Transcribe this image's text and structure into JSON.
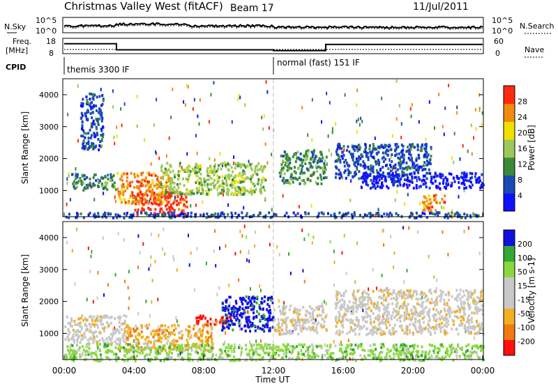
{
  "header": {
    "station": "Christmas Valley West (fitACF)",
    "beam": "Beam 17",
    "date": "11/Jul/2011"
  },
  "top_strip": {
    "nsky_label": "N.Sky",
    "nsky_ticks": [
      "10^5",
      "10^0"
    ],
    "nsearch_label": "N.Search",
    "freq_label_line1": "Freq.",
    "freq_label_line2": "[MHz]",
    "freq_ticks": [
      18,
      8
    ],
    "nave_ticks": [
      60,
      0
    ],
    "nave_label": "Nave",
    "cpid_label": "CPID",
    "cpid_segments": [
      {
        "name": "themis 3300 IF",
        "start_h": 0,
        "end_h": 12
      },
      {
        "name": "normal (fast) 151 IF",
        "start_h": 12,
        "end_h": 24
      }
    ],
    "freq_steps": [
      {
        "start_h": 0,
        "end_h": 3,
        "mhz": 14.5
      },
      {
        "start_h": 3,
        "end_h": 12,
        "mhz": 10.5
      },
      {
        "start_h": 12,
        "end_h": 15,
        "mhz": 10
      },
      {
        "start_h": 15,
        "end_h": 24,
        "mhz": 14
      }
    ]
  },
  "chart_data": {
    "type": "heatmap",
    "x_label": "Time UT",
    "x_ticks": [
      "00:00",
      "04:00",
      "08:00",
      "12:00",
      "16:00",
      "20:00",
      "00:00"
    ],
    "x_range_hours": [
      0,
      24
    ],
    "panels": [
      {
        "ylabel": "Slant Range [km]",
        "yticks": [
          1000,
          2000,
          3000,
          4000
        ],
        "ylim": [
          180,
          4500
        ],
        "colorbar_title": "Power [dB]",
        "colorbar_ticks": [
          "28",
          "24",
          "20",
          "16",
          "12",
          "8",
          "4"
        ],
        "colors": [
          "#1010ff",
          "#1a4ab4",
          "#3a8a3a",
          "#9cc85a",
          "#f0e000",
          "#f08a10",
          "#ff2a10"
        ],
        "regions": [
          {
            "x": [
              0.4,
              3.0
            ],
            "y": [
              1050,
              1550
            ],
            "c": 2
          },
          {
            "x": [
              3.0,
              6.0
            ],
            "y": [
              600,
              1600
            ],
            "c": 5
          },
          {
            "x": [
              4.0,
              7.0
            ],
            "y": [
              250,
              1000
            ],
            "c": 6
          },
          {
            "x": [
              5.5,
              11.5
            ],
            "y": [
              900,
              1900
            ],
            "c": 3
          },
          {
            "x": [
              12.3,
              15.0
            ],
            "y": [
              1250,
              2300
            ],
            "c": 2
          },
          {
            "x": [
              15.5,
              21.0
            ],
            "y": [
              1400,
              2500
            ],
            "c": 1
          },
          {
            "x": [
              17.0,
              24.0
            ],
            "y": [
              1100,
              1600
            ],
            "c": 0
          },
          {
            "x": [
              20.5,
              21.8
            ],
            "y": [
              400,
              900
            ],
            "c": 5
          },
          {
            "x": [
              0.9,
              2.2
            ],
            "y": [
              2300,
              4100
            ],
            "c": 1
          },
          {
            "x": [
              0.0,
              24.0
            ],
            "y": [
              180,
              350
            ],
            "c": 1
          }
        ]
      },
      {
        "ylabel": "Slant Range [km]",
        "yticks": [
          1000,
          2000,
          3000,
          4000
        ],
        "ylim": [
          180,
          4500
        ],
        "colorbar_title": "Velocity [m s-1]",
        "colorbar_ticks": [
          "200",
          "100",
          "50",
          "15",
          "-15",
          "-50",
          "-100",
          "-200"
        ],
        "colors": [
          "#ff1010",
          "#f07a10",
          "#f0b020",
          "#c8c8c8",
          "#c8c8c8",
          "#8ad840",
          "#34a834",
          "#1010e0"
        ],
        "regions": [
          {
            "x": [
              0.0,
              3.5
            ],
            "y": [
              700,
              1600
            ],
            "c": 3
          },
          {
            "x": [
              3.5,
              8.5
            ],
            "y": [
              500,
              1300
            ],
            "c": 2
          },
          {
            "x": [
              7.5,
              9.5
            ],
            "y": [
              1300,
              1600
            ],
            "c": 0
          },
          {
            "x": [
              9.0,
              12.0
            ],
            "y": [
              1100,
              2200
            ],
            "c": 7
          },
          {
            "x": [
              12.0,
              15.0
            ],
            "y": [
              1000,
              1900
            ],
            "c": 3
          },
          {
            "x": [
              15.5,
              24.0
            ],
            "y": [
              1000,
              2400
            ],
            "c": 3
          },
          {
            "x": [
              0.0,
              24.0
            ],
            "y": [
              180,
              700
            ],
            "c": 5
          }
        ]
      }
    ]
  }
}
